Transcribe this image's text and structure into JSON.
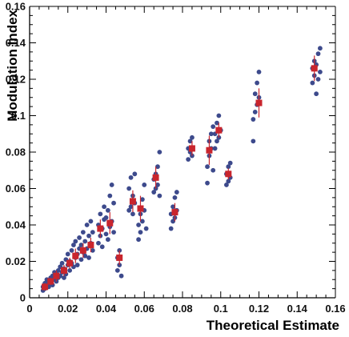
{
  "chart_data": {
    "type": "scatter",
    "title": "",
    "xlabel": "Theoretical Estimate",
    "ylabel": "Modulation Index",
    "xlim": [
      0,
      0.16
    ],
    "ylim": [
      0,
      0.16
    ],
    "x_ticks": [
      "0",
      "0.02",
      "0.04",
      "0.06",
      "0.08",
      "0.1",
      "0.12",
      "0.14",
      "0.16"
    ],
    "y_ticks": [
      "0",
      "0.02",
      "0.04",
      "0.06",
      "0.08",
      "0.1",
      "0.12",
      "0.14",
      "0.16"
    ],
    "grid": false,
    "colors": {
      "points": "#3d4a8c",
      "means": "#c9252d",
      "errorbars": "#c9252d",
      "axes": "#000000"
    },
    "series": [
      {
        "values": [
          [
            0.007,
            0.004
          ],
          [
            0.007,
            0.006
          ],
          [
            0.008,
            0.005
          ],
          [
            0.008,
            0.008
          ],
          [
            0.009,
            0.007
          ],
          [
            0.009,
            0.01
          ],
          [
            0.01,
            0.006
          ],
          [
            0.01,
            0.009
          ],
          [
            0.011,
            0.011
          ],
          [
            0.011,
            0.008
          ],
          [
            0.012,
            0.012
          ],
          [
            0.012,
            0.007
          ],
          [
            0.013,
            0.01
          ],
          [
            0.013,
            0.014
          ],
          [
            0.014,
            0.009
          ],
          [
            0.014,
            0.013
          ],
          [
            0.015,
            0.015
          ],
          [
            0.015,
            0.011
          ],
          [
            0.016,
            0.017
          ],
          [
            0.016,
            0.012
          ],
          [
            0.017,
            0.014
          ],
          [
            0.017,
            0.019
          ],
          [
            0.018,
            0.016
          ],
          [
            0.018,
            0.011
          ],
          [
            0.019,
            0.021
          ],
          [
            0.019,
            0.013
          ],
          [
            0.02,
            0.018
          ],
          [
            0.02,
            0.024
          ],
          [
            0.021,
            0.015
          ],
          [
            0.021,
            0.02
          ],
          [
            0.022,
            0.019
          ],
          [
            0.022,
            0.026
          ],
          [
            0.023,
            0.017
          ],
          [
            0.023,
            0.029
          ],
          [
            0.024,
            0.022
          ],
          [
            0.024,
            0.031
          ],
          [
            0.025,
            0.024
          ],
          [
            0.025,
            0.018
          ],
          [
            0.026,
            0.027
          ],
          [
            0.026,
            0.033
          ],
          [
            0.027,
            0.021
          ],
          [
            0.027,
            0.029
          ],
          [
            0.028,
            0.025
          ],
          [
            0.028,
            0.036
          ],
          [
            0.029,
            0.023
          ],
          [
            0.029,
            0.031
          ],
          [
            0.03,
            0.027
          ],
          [
            0.03,
            0.04
          ],
          [
            0.031,
            0.022
          ],
          [
            0.031,
            0.034
          ],
          [
            0.032,
            0.03
          ],
          [
            0.032,
            0.042
          ],
          [
            0.033,
            0.026
          ],
          [
            0.033,
            0.036
          ],
          [
            0.036,
            0.03
          ],
          [
            0.036,
            0.04
          ],
          [
            0.037,
            0.034
          ],
          [
            0.037,
            0.046
          ],
          [
            0.038,
            0.038
          ],
          [
            0.038,
            0.028
          ],
          [
            0.039,
            0.043
          ],
          [
            0.039,
            0.05
          ],
          [
            0.04,
            0.035
          ],
          [
            0.04,
            0.044
          ],
          [
            0.041,
            0.032
          ],
          [
            0.041,
            0.048
          ],
          [
            0.042,
            0.039
          ],
          [
            0.042,
            0.056
          ],
          [
            0.043,
            0.042
          ],
          [
            0.043,
            0.062
          ],
          [
            0.044,
            0.036
          ],
          [
            0.044,
            0.052
          ],
          [
            0.046,
            0.015
          ],
          [
            0.046,
            0.022
          ],
          [
            0.047,
            0.018
          ],
          [
            0.047,
            0.026
          ],
          [
            0.048,
            0.012
          ],
          [
            0.052,
            0.048
          ],
          [
            0.052,
            0.06
          ],
          [
            0.053,
            0.05
          ],
          [
            0.053,
            0.066
          ],
          [
            0.054,
            0.046
          ],
          [
            0.054,
            0.056
          ],
          [
            0.055,
            0.052
          ],
          [
            0.055,
            0.068
          ],
          [
            0.057,
            0.032
          ],
          [
            0.057,
            0.04
          ],
          [
            0.058,
            0.036
          ],
          [
            0.058,
            0.046
          ],
          [
            0.059,
            0.042
          ],
          [
            0.059,
            0.054
          ],
          [
            0.06,
            0.048
          ],
          [
            0.06,
            0.062
          ],
          [
            0.061,
            0.038
          ],
          [
            0.065,
            0.058
          ],
          [
            0.065,
            0.065
          ],
          [
            0.066,
            0.06
          ],
          [
            0.066,
            0.068
          ],
          [
            0.067,
            0.062
          ],
          [
            0.067,
            0.072
          ],
          [
            0.068,
            0.056
          ],
          [
            0.068,
            0.08
          ],
          [
            0.074,
            0.038
          ],
          [
            0.074,
            0.046
          ],
          [
            0.075,
            0.042
          ],
          [
            0.075,
            0.05
          ],
          [
            0.076,
            0.044
          ],
          [
            0.076,
            0.055
          ],
          [
            0.077,
            0.048
          ],
          [
            0.077,
            0.058
          ],
          [
            0.083,
            0.076
          ],
          [
            0.083,
            0.082
          ],
          [
            0.084,
            0.08
          ],
          [
            0.084,
            0.086
          ],
          [
            0.085,
            0.078
          ],
          [
            0.085,
            0.088
          ],
          [
            0.093,
            0.063
          ],
          [
            0.093,
            0.072
          ],
          [
            0.094,
            0.078
          ],
          [
            0.094,
            0.086
          ],
          [
            0.095,
            0.082
          ],
          [
            0.095,
            0.09
          ],
          [
            0.096,
            0.07
          ],
          [
            0.096,
            0.094
          ],
          [
            0.097,
            0.082
          ],
          [
            0.097,
            0.09
          ],
          [
            0.098,
            0.086
          ],
          [
            0.098,
            0.096
          ],
          [
            0.099,
            0.088
          ],
          [
            0.099,
            0.1
          ],
          [
            0.1,
            0.092
          ],
          [
            0.103,
            0.062
          ],
          [
            0.103,
            0.068
          ],
          [
            0.104,
            0.064
          ],
          [
            0.104,
            0.072
          ],
          [
            0.105,
            0.066
          ],
          [
            0.105,
            0.074
          ],
          [
            0.117,
            0.086
          ],
          [
            0.117,
            0.098
          ],
          [
            0.118,
            0.102
          ],
          [
            0.118,
            0.112
          ],
          [
            0.119,
            0.106
          ],
          [
            0.119,
            0.118
          ],
          [
            0.12,
            0.11
          ],
          [
            0.12,
            0.124
          ],
          [
            0.148,
            0.118
          ],
          [
            0.148,
            0.126
          ],
          [
            0.149,
            0.122
          ],
          [
            0.149,
            0.13
          ],
          [
            0.15,
            0.112
          ],
          [
            0.15,
            0.128
          ],
          [
            0.151,
            0.12
          ],
          [
            0.151,
            0.134
          ],
          [
            0.152,
            0.124
          ],
          [
            0.152,
            0.137
          ]
        ]
      },
      {
        "values": [
          [
            0.008,
            0.006
          ],
          [
            0.011,
            0.009
          ],
          [
            0.014,
            0.012
          ],
          [
            0.018,
            0.015
          ],
          [
            0.021,
            0.019
          ],
          [
            0.024,
            0.023
          ],
          [
            0.028,
            0.026
          ],
          [
            0.032,
            0.029
          ],
          [
            0.037,
            0.038
          ],
          [
            0.042,
            0.041
          ],
          [
            0.047,
            0.022
          ],
          [
            0.054,
            0.053
          ],
          [
            0.058,
            0.049
          ],
          [
            0.066,
            0.066
          ],
          [
            0.076,
            0.047
          ],
          [
            0.085,
            0.082
          ],
          [
            0.094,
            0.081
          ],
          [
            0.099,
            0.092
          ],
          [
            0.104,
            0.068
          ],
          [
            0.12,
            0.107
          ],
          [
            0.149,
            0.126
          ]
        ],
        "errors": [
          0.002,
          0.002,
          0.003,
          0.003,
          0.003,
          0.004,
          0.004,
          0.004,
          0.005,
          0.006,
          0.004,
          0.006,
          0.007,
          0.006,
          0.005,
          0.004,
          0.008,
          0.004,
          0.003,
          0.008,
          0.007
        ]
      }
    ]
  }
}
